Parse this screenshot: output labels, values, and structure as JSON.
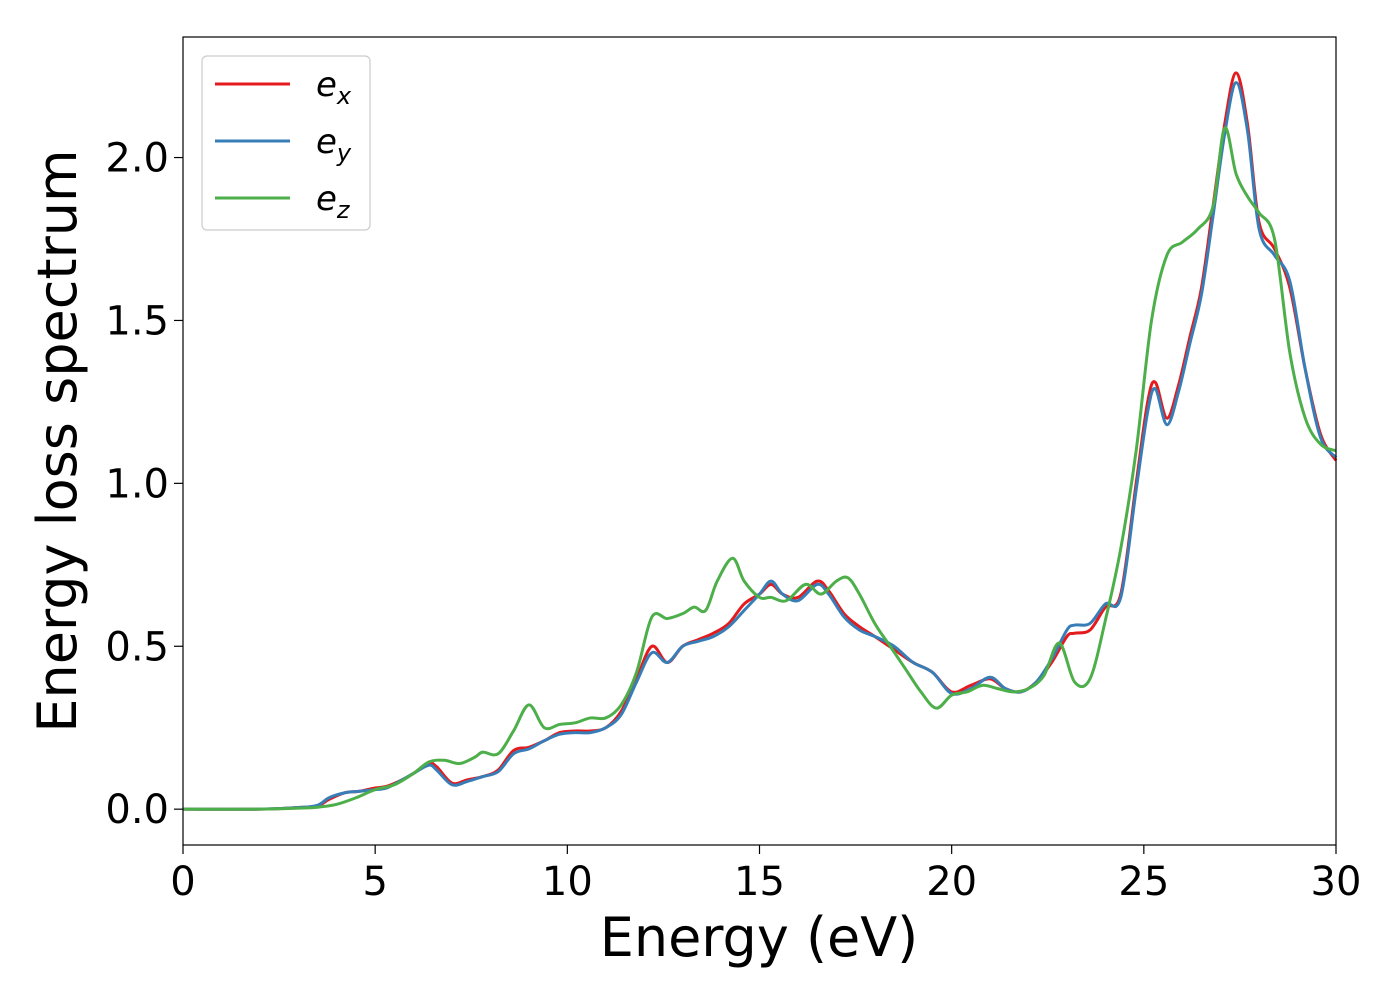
{
  "chart_data": {
    "type": "line",
    "title": "",
    "xlabel": "Energy (eV)",
    "ylabel": "Energy loss spectrum",
    "xlim": [
      0,
      30
    ],
    "ylim": [
      -0.11,
      2.37
    ],
    "xticks": [
      0,
      5,
      10,
      15,
      20,
      25,
      30
    ],
    "xtick_labels": [
      "0",
      "5",
      "10",
      "15",
      "20",
      "25",
      "30"
    ],
    "yticks": [
      0.0,
      0.5,
      1.0,
      1.5,
      2.0
    ],
    "ytick_labels": [
      "0.0",
      "0.5",
      "1.0",
      "1.5",
      "2.0"
    ],
    "grid": false,
    "legend": {
      "position": "top-left"
    },
    "series": [
      {
        "name": "e",
        "subscript": "x",
        "color": "#e41a1c",
        "x": [
          0,
          2,
          3,
          3.5,
          3.8,
          4.2,
          4.6,
          5.0,
          5.3,
          5.7,
          6.0,
          6.4,
          6.6,
          7.0,
          7.4,
          7.8,
          8.2,
          8.6,
          9.0,
          9.4,
          9.8,
          10.2,
          10.6,
          11.0,
          11.4,
          11.8,
          12.2,
          12.6,
          13.0,
          13.4,
          13.8,
          14.2,
          14.6,
          15.0,
          15.3,
          15.6,
          16.0,
          16.5,
          16.8,
          17.2,
          17.6,
          18.0,
          18.5,
          19.0,
          19.5,
          20.0,
          20.5,
          21.0,
          21.4,
          21.8,
          22.2,
          22.6,
          23.0,
          23.2,
          23.6,
          24.0,
          24.4,
          24.8,
          25.1,
          25.3,
          25.6,
          25.9,
          26.2,
          26.5,
          26.8,
          27.1,
          27.4,
          27.7,
          28.0,
          28.4,
          28.8,
          29.2,
          29.6,
          30.0
        ],
        "y": [
          0,
          0,
          0.005,
          0.01,
          0.03,
          0.05,
          0.055,
          0.065,
          0.07,
          0.09,
          0.11,
          0.14,
          0.13,
          0.08,
          0.09,
          0.1,
          0.12,
          0.18,
          0.19,
          0.21,
          0.235,
          0.24,
          0.24,
          0.25,
          0.3,
          0.4,
          0.5,
          0.45,
          0.5,
          0.52,
          0.54,
          0.57,
          0.63,
          0.66,
          0.69,
          0.66,
          0.65,
          0.7,
          0.67,
          0.6,
          0.56,
          0.53,
          0.49,
          0.45,
          0.42,
          0.36,
          0.38,
          0.4,
          0.37,
          0.36,
          0.39,
          0.45,
          0.53,
          0.54,
          0.55,
          0.62,
          0.66,
          1.0,
          1.25,
          1.31,
          1.2,
          1.3,
          1.45,
          1.6,
          1.85,
          2.1,
          2.26,
          2.1,
          1.8,
          1.72,
          1.6,
          1.35,
          1.15,
          1.07
        ]
      },
      {
        "name": "e",
        "subscript": "y",
        "color": "#377eb8",
        "x": [
          0,
          2,
          3,
          3.5,
          3.8,
          4.2,
          4.6,
          5.0,
          5.3,
          5.7,
          6.0,
          6.4,
          6.6,
          7.0,
          7.4,
          7.8,
          8.2,
          8.6,
          9.0,
          9.4,
          9.8,
          10.2,
          10.6,
          11.0,
          11.4,
          11.8,
          12.2,
          12.6,
          13.0,
          13.4,
          13.8,
          14.2,
          14.6,
          15.0,
          15.3,
          15.6,
          16.0,
          16.5,
          16.8,
          17.2,
          17.6,
          18.0,
          18.5,
          19.0,
          19.5,
          20.0,
          20.5,
          21.0,
          21.4,
          21.8,
          22.2,
          22.6,
          23.0,
          23.2,
          23.6,
          24.0,
          24.4,
          24.8,
          25.1,
          25.3,
          25.6,
          25.9,
          26.2,
          26.5,
          26.8,
          27.1,
          27.4,
          27.7,
          28.0,
          28.4,
          28.8,
          29.2,
          29.6,
          30.0
        ],
        "y": [
          0,
          0,
          0.005,
          0.012,
          0.035,
          0.05,
          0.055,
          0.06,
          0.065,
          0.09,
          0.11,
          0.135,
          0.12,
          0.075,
          0.085,
          0.1,
          0.115,
          0.17,
          0.185,
          0.21,
          0.23,
          0.235,
          0.235,
          0.25,
          0.29,
          0.39,
          0.48,
          0.45,
          0.5,
          0.515,
          0.53,
          0.56,
          0.61,
          0.66,
          0.7,
          0.66,
          0.64,
          0.69,
          0.66,
          0.59,
          0.55,
          0.53,
          0.5,
          0.45,
          0.42,
          0.355,
          0.37,
          0.405,
          0.37,
          0.36,
          0.39,
          0.46,
          0.55,
          0.565,
          0.57,
          0.63,
          0.65,
          0.98,
          1.22,
          1.29,
          1.18,
          1.28,
          1.43,
          1.58,
          1.82,
          2.07,
          2.23,
          2.08,
          1.78,
          1.7,
          1.62,
          1.35,
          1.14,
          1.08
        ]
      },
      {
        "name": "e",
        "subscript": "z",
        "color": "#4daf4a",
        "x": [
          0,
          2,
          3,
          3.5,
          4.0,
          4.5,
          5.0,
          5.5,
          6.0,
          6.4,
          6.8,
          7.2,
          7.6,
          7.8,
          8.2,
          8.6,
          9.0,
          9.4,
          9.8,
          10.2,
          10.6,
          11.0,
          11.4,
          11.8,
          12.2,
          12.6,
          13.0,
          13.3,
          13.6,
          13.9,
          14.3,
          14.6,
          15.0,
          15.3,
          15.7,
          16.2,
          16.6,
          17.0,
          17.3,
          17.6,
          18.0,
          18.4,
          18.8,
          19.2,
          19.6,
          20.0,
          20.4,
          20.8,
          21.2,
          21.6,
          22.0,
          22.4,
          22.8,
          23.2,
          23.6,
          24.0,
          24.4,
          24.8,
          25.2,
          25.6,
          26.0,
          26.4,
          26.8,
          27.1,
          27.4,
          27.7,
          28.0,
          28.4,
          28.8,
          29.2,
          29.6,
          30.0
        ],
        "y": [
          0,
          0,
          0.003,
          0.006,
          0.015,
          0.035,
          0.06,
          0.075,
          0.11,
          0.145,
          0.15,
          0.14,
          0.16,
          0.175,
          0.17,
          0.24,
          0.32,
          0.25,
          0.26,
          0.265,
          0.28,
          0.28,
          0.32,
          0.42,
          0.59,
          0.585,
          0.6,
          0.62,
          0.61,
          0.7,
          0.77,
          0.7,
          0.65,
          0.65,
          0.64,
          0.69,
          0.66,
          0.7,
          0.71,
          0.66,
          0.57,
          0.5,
          0.43,
          0.36,
          0.31,
          0.35,
          0.36,
          0.38,
          0.37,
          0.36,
          0.37,
          0.41,
          0.51,
          0.39,
          0.4,
          0.58,
          0.8,
          1.1,
          1.5,
          1.7,
          1.74,
          1.78,
          1.85,
          2.09,
          1.95,
          1.88,
          1.83,
          1.75,
          1.4,
          1.2,
          1.12,
          1.1
        ]
      }
    ]
  }
}
